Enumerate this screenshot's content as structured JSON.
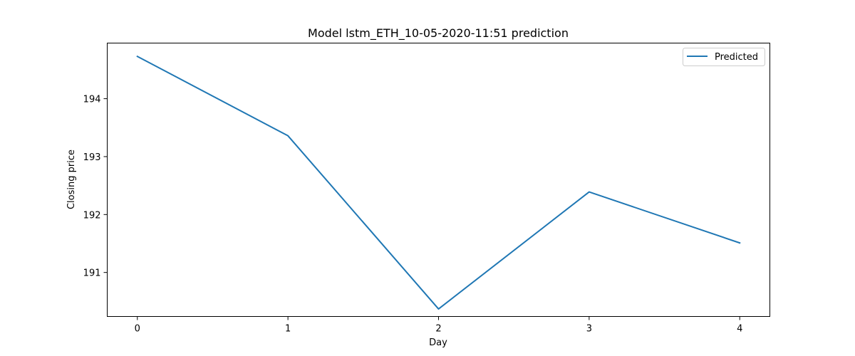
{
  "chart_data": {
    "type": "line",
    "title": "Model lstm_ETH_10-05-2020-11:51 prediction",
    "xlabel": "Day",
    "ylabel": "Closing price",
    "x": [
      0,
      1,
      2,
      3,
      4
    ],
    "series": [
      {
        "name": "Predicted",
        "values": [
          194.73,
          193.36,
          190.37,
          192.39,
          191.51
        ],
        "color": "#1f77b4"
      }
    ],
    "xlim": [
      -0.2,
      4.2
    ],
    "ylim": [
      190.24,
      194.96
    ],
    "xticks": [
      0,
      1,
      2,
      3,
      4
    ],
    "xtick_labels": [
      "0",
      "1",
      "2",
      "3",
      "4"
    ],
    "yticks": [
      191,
      192,
      193,
      194
    ],
    "ytick_labels": [
      "191",
      "192",
      "193",
      "194"
    ],
    "grid": false,
    "legend_position": "upper right"
  }
}
